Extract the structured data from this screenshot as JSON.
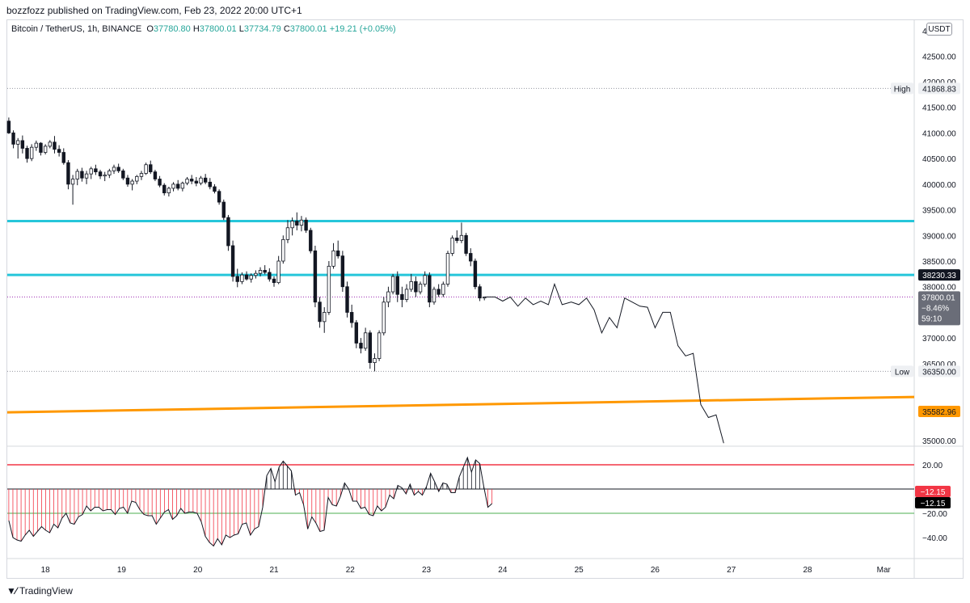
{
  "header": {
    "published": "bozzfozz published on TradingView.com, Feb 23, 2022 20:00 UTC+1"
  },
  "legend": {
    "symbol": "Bitcoin / TetherUS, 1h, BINANCE",
    "o_label": "O",
    "o": "37780.80",
    "h_label": "H",
    "h": "37800.01",
    "l_label": "L",
    "l": "37734.79",
    "c_label": "C",
    "c": "37800.01",
    "change": "+19.21 (+0.05%)"
  },
  "currency": "USDT",
  "footer": {
    "brand": "TradingView"
  },
  "colors": {
    "cyan_level": "#26c6da",
    "orange_trend": "#ff9800",
    "osc_upper": "#f23645",
    "osc_lower": "#4caf50",
    "down_body": "#131722",
    "label_dark": "#131722",
    "label_gray": "#6a6d78"
  },
  "chart_data": {
    "type": "candlestick",
    "x_ticks": [
      "18",
      "19",
      "20",
      "21",
      "22",
      "23",
      "24",
      "25",
      "26",
      "27",
      "28",
      "Mar"
    ],
    "y_ticks": [
      "42500.00",
      "42000.00",
      "41500.00",
      "41000.00",
      "40500.00",
      "40000.00",
      "39500.00",
      "39000.00",
      "38500.00",
      "38000.00",
      "37000.00",
      "36500.00",
      "35000.00"
    ],
    "y_top_partial": "4",
    "ylim": [
      34950,
      43100
    ],
    "price_labels": {
      "high": {
        "tag": "High",
        "value": "41868.83"
      },
      "low": {
        "tag": "Low",
        "value": "36350.00"
      },
      "level_upper": {
        "value": "38230.33"
      },
      "last": {
        "value": "37800.01",
        "pct": "−8.46%",
        "countdown": "59:10"
      },
      "trend": {
        "value": "35582.96"
      }
    },
    "horizontal_levels": [
      39280,
      38230.33
    ],
    "trend_line": {
      "start": {
        "x": 17.5,
        "y": 35550
      },
      "end": {
        "x": 29.4,
        "y": 35850
      }
    },
    "candles": [
      [
        17.52,
        41230,
        41300,
        40980,
        41000
      ],
      [
        17.58,
        41000,
        41050,
        40700,
        40780
      ],
      [
        17.64,
        40780,
        40900,
        40500,
        40850
      ],
      [
        17.7,
        40850,
        40950,
        40600,
        40700
      ],
      [
        17.76,
        40700,
        40750,
        40420,
        40500
      ],
      [
        17.82,
        40500,
        40780,
        40450,
        40720
      ],
      [
        17.88,
        40720,
        40850,
        40650,
        40800
      ],
      [
        17.94,
        40800,
        40820,
        40560,
        40620
      ],
      [
        18.0,
        40620,
        40780,
        40580,
        40740
      ],
      [
        18.06,
        40740,
        40860,
        40700,
        40820
      ],
      [
        18.12,
        40820,
        40940,
        40600,
        40680
      ],
      [
        18.18,
        40680,
        40760,
        40540,
        40620
      ],
      [
        18.24,
        40620,
        40700,
        40380,
        40420
      ],
      [
        18.3,
        40420,
        40470,
        39900,
        40000
      ],
      [
        18.36,
        40000,
        40180,
        39600,
        40100
      ],
      [
        18.42,
        40100,
        40300,
        39980,
        40250
      ],
      [
        18.48,
        40250,
        40320,
        40050,
        40120
      ],
      [
        18.54,
        40120,
        40260,
        40000,
        40200
      ],
      [
        18.6,
        40200,
        40340,
        40100,
        40300
      ],
      [
        18.66,
        40300,
        40380,
        40180,
        40240
      ],
      [
        18.72,
        40240,
        40280,
        40100,
        40160
      ],
      [
        18.78,
        40160,
        40240,
        40060,
        40180
      ],
      [
        18.84,
        40180,
        40300,
        40120,
        40260
      ],
      [
        18.9,
        40260,
        40380,
        40200,
        40330
      ],
      [
        18.96,
        40330,
        40400,
        40220,
        40260
      ],
      [
        19.02,
        40260,
        40300,
        40080,
        40120
      ],
      [
        19.08,
        40120,
        40180,
        39950,
        40000
      ],
      [
        19.14,
        40000,
        40100,
        39880,
        40060
      ],
      [
        19.2,
        40060,
        40180,
        40000,
        40150
      ],
      [
        19.26,
        40150,
        40260,
        40080,
        40210
      ],
      [
        19.32,
        40210,
        40420,
        40180,
        40380
      ],
      [
        19.38,
        40380,
        40460,
        40200,
        40240
      ],
      [
        19.44,
        40240,
        40280,
        40060,
        40100
      ],
      [
        19.5,
        40100,
        40160,
        39940,
        39980
      ],
      [
        19.56,
        39980,
        40020,
        39780,
        39830
      ],
      [
        19.62,
        39830,
        39950,
        39760,
        39920
      ],
      [
        19.68,
        39920,
        40040,
        39860,
        40000
      ],
      [
        19.74,
        40000,
        40080,
        39880,
        39920
      ],
      [
        19.8,
        39920,
        40050,
        39860,
        40020
      ],
      [
        19.86,
        40020,
        40140,
        39980,
        40100
      ],
      [
        19.92,
        40100,
        40180,
        40000,
        40060
      ],
      [
        19.98,
        40060,
        40140,
        39960,
        40020
      ],
      [
        20.04,
        40020,
        40160,
        39980,
        40120
      ],
      [
        20.1,
        40120,
        40200,
        40000,
        40040
      ],
      [
        20.16,
        40040,
        40120,
        39900,
        39950
      ],
      [
        20.22,
        39950,
        40000,
        39820,
        39860
      ],
      [
        20.28,
        39860,
        39900,
        39600,
        39650
      ],
      [
        20.34,
        39650,
        39700,
        39300,
        39350
      ],
      [
        20.4,
        39350,
        39400,
        38700,
        38800
      ],
      [
        20.46,
        38800,
        38900,
        38100,
        38200
      ],
      [
        20.52,
        38200,
        38350,
        37990,
        38100
      ],
      [
        20.58,
        38100,
        38280,
        38050,
        38230
      ],
      [
        20.64,
        38230,
        38300,
        38120,
        38150
      ],
      [
        20.7,
        38150,
        38260,
        38080,
        38220
      ],
      [
        20.76,
        38220,
        38320,
        38160,
        38260
      ],
      [
        20.82,
        38260,
        38380,
        38200,
        38320
      ],
      [
        20.88,
        38320,
        38420,
        38240,
        38280
      ],
      [
        20.94,
        38280,
        38360,
        38100,
        38150
      ],
      [
        21.0,
        38150,
        38200,
        38000,
        38080
      ],
      [
        21.06,
        38080,
        38600,
        38050,
        38500
      ],
      [
        21.12,
        38500,
        39000,
        38450,
        38920
      ],
      [
        21.18,
        38920,
        39300,
        38850,
        39150
      ],
      [
        21.24,
        39150,
        39350,
        39000,
        39280
      ],
      [
        21.3,
        39280,
        39450,
        39100,
        39200
      ],
      [
        21.36,
        39200,
        39380,
        39080,
        39300
      ],
      [
        21.42,
        39300,
        39350,
        39050,
        39100
      ],
      [
        21.48,
        39100,
        39150,
        38650,
        38700
      ],
      [
        21.54,
        38700,
        38800,
        37600,
        37700
      ],
      [
        21.6,
        37700,
        37800,
        37200,
        37320
      ],
      [
        21.66,
        37320,
        37600,
        37100,
        37500
      ],
      [
        21.72,
        37500,
        38500,
        37450,
        38400
      ],
      [
        21.78,
        38400,
        38850,
        38350,
        38700
      ],
      [
        21.84,
        38700,
        38900,
        38550,
        38600
      ],
      [
        21.9,
        38600,
        38700,
        37900,
        38000
      ],
      [
        21.96,
        38000,
        38100,
        37400,
        37500
      ],
      [
        22.02,
        37500,
        37650,
        37200,
        37300
      ],
      [
        22.08,
        37300,
        37350,
        36800,
        36900
      ],
      [
        22.14,
        36900,
        37000,
        36700,
        36800
      ],
      [
        22.2,
        36800,
        37200,
        36750,
        37100
      ],
      [
        22.26,
        37100,
        37150,
        36400,
        36520
      ],
      [
        22.32,
        36520,
        36700,
        36350,
        36600
      ],
      [
        22.38,
        36600,
        37150,
        36550,
        37100
      ],
      [
        22.44,
        37100,
        37800,
        37050,
        37700
      ],
      [
        22.5,
        37700,
        38000,
        37600,
        37900
      ],
      [
        22.56,
        37900,
        38250,
        37850,
        38200
      ],
      [
        22.62,
        38200,
        38300,
        37700,
        37850
      ],
      [
        22.68,
        37850,
        38000,
        37600,
        37750
      ],
      [
        22.74,
        37750,
        38050,
        37700,
        37950
      ],
      [
        22.8,
        37950,
        38250,
        37900,
        38100
      ],
      [
        22.86,
        38100,
        38200,
        37800,
        37900
      ],
      [
        22.92,
        37900,
        38100,
        37850,
        38050
      ],
      [
        22.98,
        38050,
        38300,
        38000,
        38220
      ],
      [
        23.04,
        38220,
        38280,
        37600,
        37700
      ],
      [
        23.1,
        37700,
        38000,
        37650,
        37950
      ],
      [
        23.16,
        37950,
        38050,
        37800,
        37850
      ],
      [
        23.22,
        37850,
        38100,
        37800,
        38050
      ],
      [
        23.28,
        38050,
        38700,
        38000,
        38650
      ],
      [
        23.34,
        38650,
        39000,
        38600,
        38950
      ],
      [
        23.4,
        38950,
        39100,
        38850,
        38900
      ],
      [
        23.46,
        38900,
        39250,
        38850,
        39000
      ],
      [
        23.52,
        39000,
        39050,
        38600,
        38650
      ],
      [
        23.58,
        38650,
        38750,
        38400,
        38500
      ],
      [
        23.64,
        38500,
        38550,
        37950,
        38000
      ],
      [
        23.7,
        38000,
        38050,
        37720,
        37780
      ],
      [
        23.76,
        37780,
        37800,
        37735,
        37800
      ]
    ],
    "projection": [
      [
        23.76,
        37800
      ],
      [
        23.9,
        37800
      ],
      [
        24.0,
        37720
      ],
      [
        24.1,
        37800
      ],
      [
        24.2,
        37620
      ],
      [
        24.3,
        37780
      ],
      [
        24.4,
        37650
      ],
      [
        24.5,
        37720
      ],
      [
        24.6,
        37650
      ],
      [
        24.68,
        38050
      ],
      [
        24.78,
        37650
      ],
      [
        24.9,
        37700
      ],
      [
        25.0,
        37650
      ],
      [
        25.1,
        37780
      ],
      [
        25.2,
        37550
      ],
      [
        25.3,
        37100
      ],
      [
        25.4,
        37400
      ],
      [
        25.5,
        37200
      ],
      [
        25.6,
        37780
      ],
      [
        25.7,
        37700
      ],
      [
        25.8,
        37620
      ],
      [
        25.9,
        37600
      ],
      [
        26.0,
        37200
      ],
      [
        26.1,
        37500
      ],
      [
        26.2,
        37500
      ],
      [
        26.3,
        36850
      ],
      [
        26.4,
        36650
      ],
      [
        26.5,
        36700
      ],
      [
        26.6,
        35700
      ],
      [
        26.7,
        35450
      ],
      [
        26.8,
        35500
      ],
      [
        26.9,
        34950
      ]
    ],
    "oscillator": {
      "y_ticks": [
        "20.00",
        "−20.00",
        "−40.00"
      ],
      "upper_level": 20,
      "lower_level": -20,
      "zero_level": 0,
      "last_value": "−12.15",
      "last_value_2": "−12.15",
      "ylim": [
        -52,
        32
      ],
      "values": [
        -26,
        -40,
        -42,
        -43,
        -38,
        -34,
        -39,
        -35,
        -31,
        -34,
        -36,
        -29,
        -32,
        -24,
        -20,
        -28,
        -29,
        -23,
        -21,
        -14,
        -18,
        -15,
        -15,
        -18,
        -17,
        -17,
        -21,
        -16,
        -15,
        -20,
        -10,
        -11,
        -17,
        -21,
        -22,
        -22,
        -29,
        -24,
        -19,
        -17,
        -25,
        -22,
        -16,
        -20,
        -19,
        -19,
        -20,
        -27,
        -39,
        -44,
        -47,
        -41,
        -46,
        -38,
        -40,
        -38,
        -37,
        -29,
        -28,
        -38,
        -33,
        -31,
        -15,
        11,
        17,
        6,
        18,
        23,
        19,
        15,
        -5,
        -3,
        -13,
        -33,
        -23,
        -28,
        -35,
        -34,
        -7,
        -13,
        -14,
        -6,
        5,
        0,
        -10,
        -10,
        -16,
        -15,
        -21,
        -22,
        -14,
        -18,
        -15,
        -5,
        -8,
        3,
        1,
        -4,
        4,
        -5,
        -2,
        -5,
        2,
        13,
        6,
        -2,
        5,
        4,
        -3,
        -3,
        10,
        18,
        26,
        14,
        24,
        21,
        2,
        -15,
        -12
      ],
      "x_start": 17.52,
      "x_end": 23.86
    }
  }
}
